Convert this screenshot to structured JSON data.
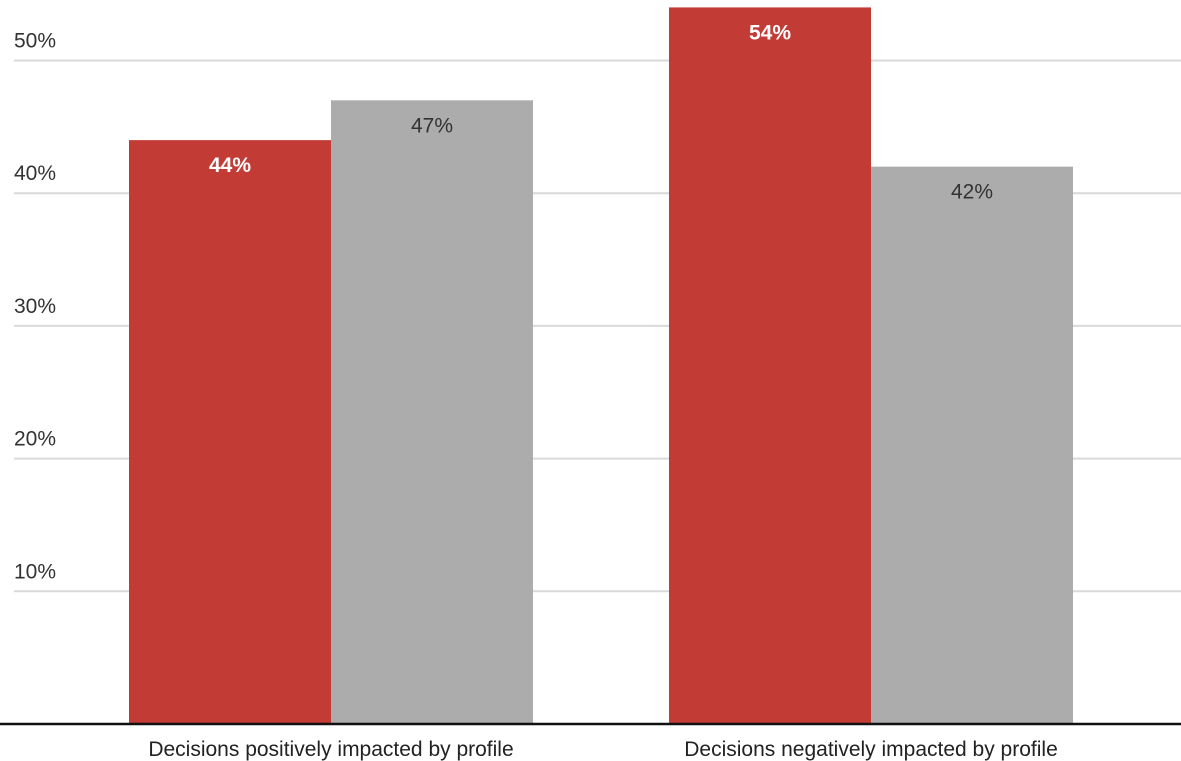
{
  "chart_data": {
    "type": "bar",
    "categories": [
      "Decisions positively impacted by profile",
      "Decisions negatively impacted by profile"
    ],
    "series": [
      {
        "color": "#c23b35",
        "label_color": "#ffffff",
        "label_bold": true,
        "values": [
          44,
          54
        ],
        "value_labels": [
          "44%",
          "54%"
        ]
      },
      {
        "color": "#acacac",
        "label_color": "#333333",
        "label_bold": false,
        "values": [
          47,
          42
        ],
        "value_labels": [
          "47%",
          "42%"
        ]
      }
    ],
    "title": "",
    "xlabel": "",
    "ylabel": "",
    "ylim": [
      0,
      50
    ],
    "yticks": [
      10,
      20,
      30,
      40,
      50
    ],
    "ytick_labels": [
      "10%",
      "20%",
      "30%",
      "40%",
      "50%"
    ],
    "grid": true,
    "gridline_color": "#d9d9d9",
    "axis_color": "#111111",
    "legend": "none"
  }
}
